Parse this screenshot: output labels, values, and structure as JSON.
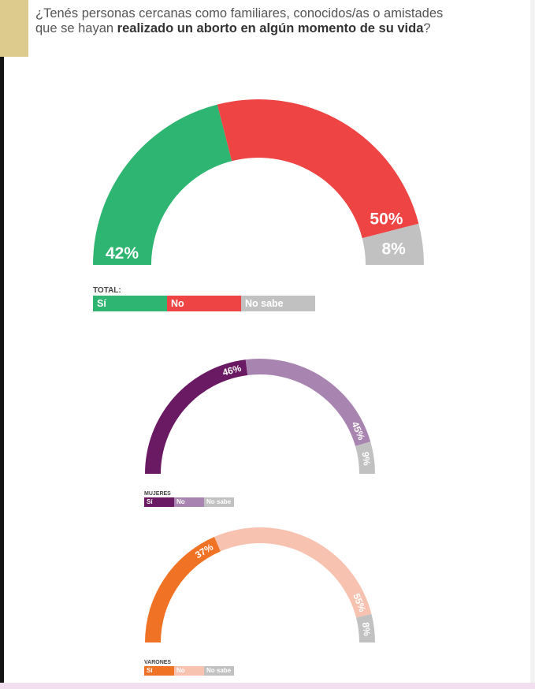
{
  "question": {
    "part1": "¿Tenés personas cercanas como familiares, conocidos/as o amistades",
    "part2": "que se hayan ",
    "part3_bold": "realizado un aborto en algún momento de su vida",
    "part4": "?"
  },
  "colors": {
    "accent_block": "#dccb8c",
    "total": [
      "#2eb571",
      "#ee4444",
      "#c1c1c1"
    ],
    "mujeres": [
      "#6a1a62",
      "#a884b0",
      "#c1c1c1"
    ],
    "varones": [
      "#f07225",
      "#f7c2b0",
      "#c1c1c1"
    ]
  },
  "chart_data": [
    {
      "type": "pie",
      "variant": "half-donut",
      "group": "TOTAL:",
      "categories": [
        "Sí",
        "No",
        "No sabe"
      ],
      "values": [
        42,
        50,
        8
      ],
      "labels": [
        "42%",
        "50%",
        "8%"
      ]
    },
    {
      "type": "pie",
      "variant": "half-donut",
      "group": "MUJERES",
      "categories": [
        "Sí",
        "No",
        "No sabe"
      ],
      "values": [
        46,
        45,
        9
      ],
      "labels": [
        "46%",
        "45%",
        "9%"
      ]
    },
    {
      "type": "pie",
      "variant": "half-donut",
      "group": "VARONES",
      "categories": [
        "Sí",
        "No",
        "No sabe"
      ],
      "values": [
        37,
        55,
        8
      ],
      "labels": [
        "37%",
        "55%",
        "8%"
      ]
    }
  ]
}
